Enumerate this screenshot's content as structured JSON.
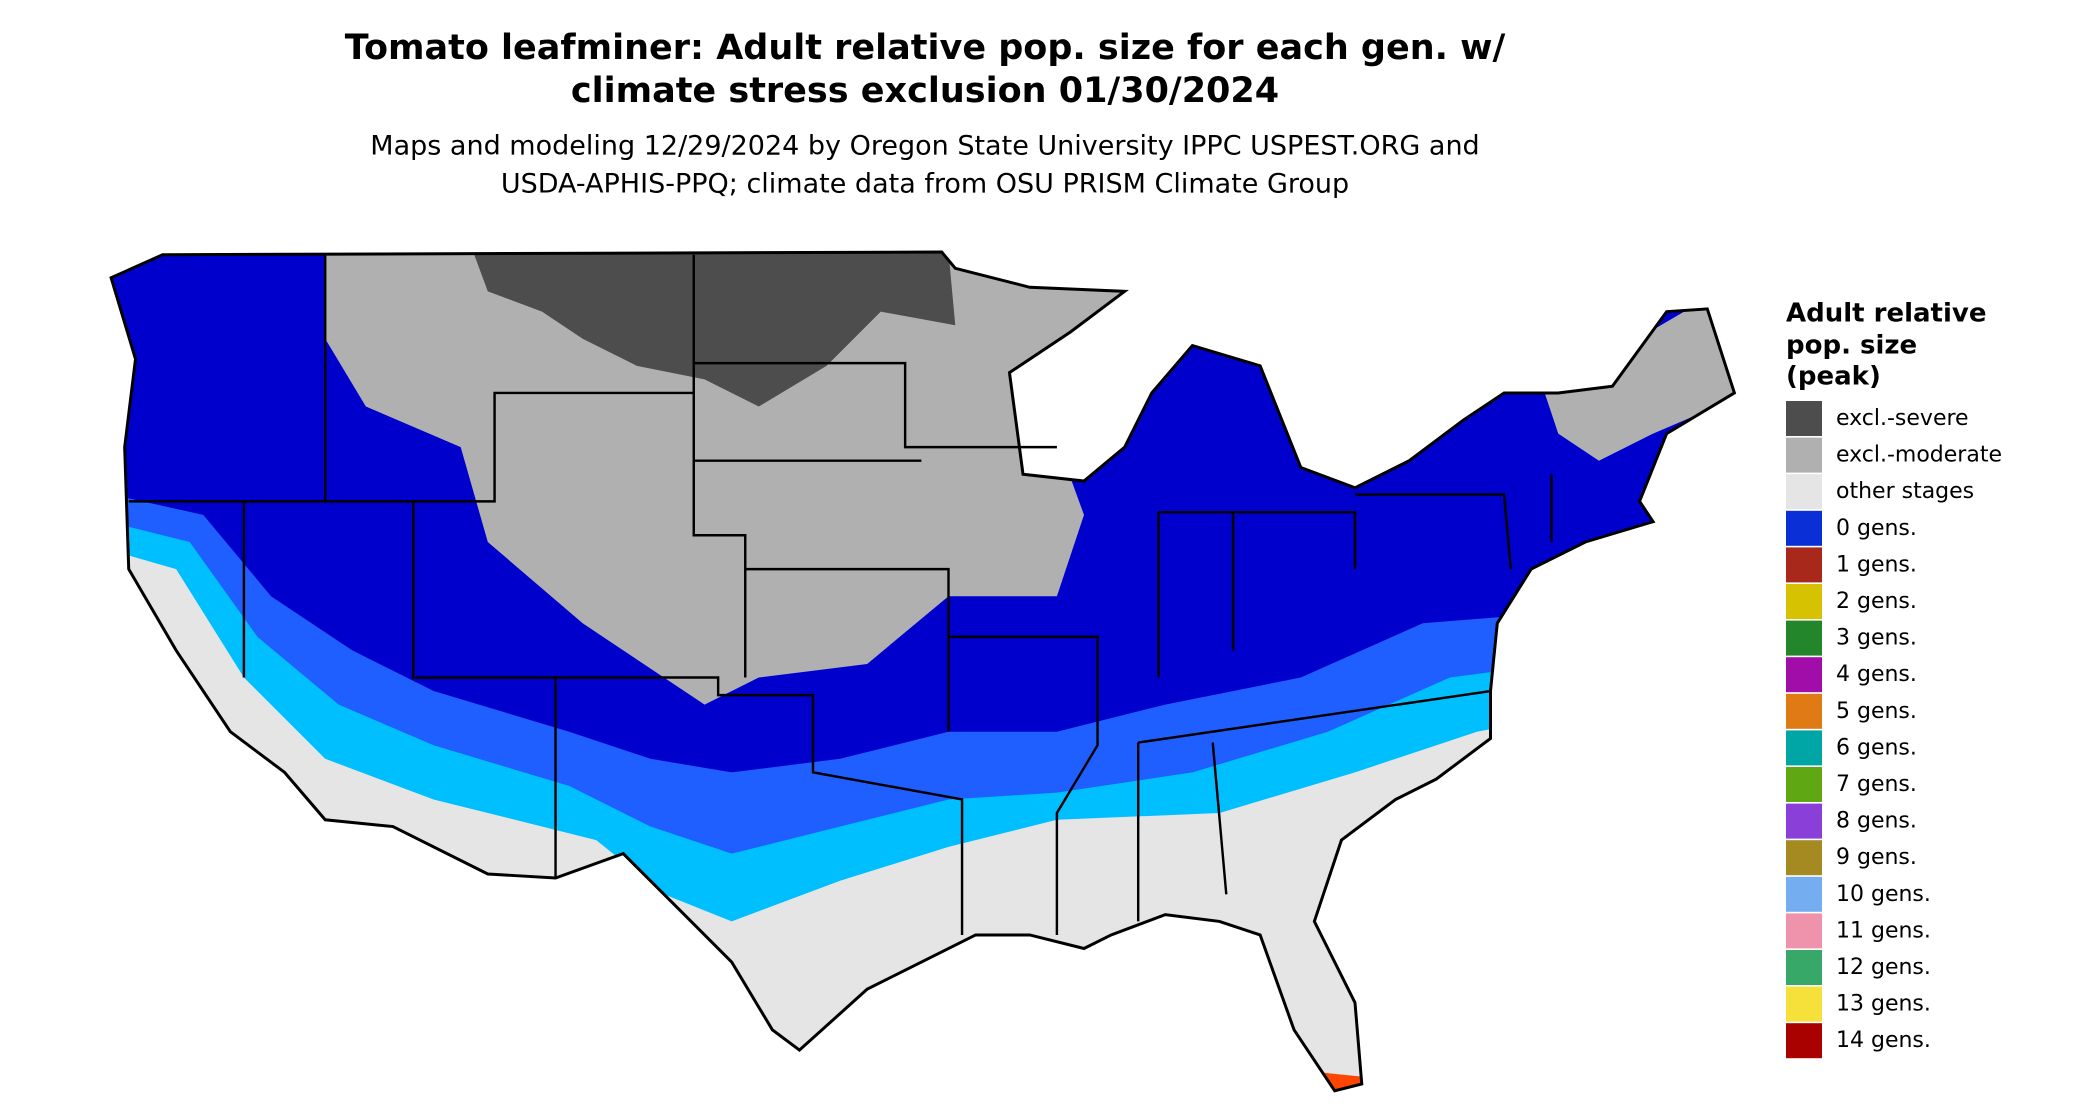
{
  "header": {
    "title": [
      "Tomato leafminer: Adult relative pop. size for each gen. w/",
      "climate stress exclusion 01/30/2024"
    ],
    "subtitle": [
      "Maps and modeling 12/29/2024 by Oregon State University IPPC USPEST.ORG and",
      "USDA-APHIS-PPQ; climate data from OSU PRISM Climate Group"
    ]
  },
  "legend": {
    "title": [
      "Adult relative",
      "pop. size",
      "(peak)"
    ],
    "items": [
      {
        "label": "excl.-severe",
        "color": "#4d4d4d"
      },
      {
        "label": "excl.-moderate",
        "color": "#b0b0b0"
      },
      {
        "label": "other stages",
        "color": "#e5e5e5"
      },
      {
        "label": "0 gens.",
        "color": "#0a2fd6"
      },
      {
        "label": "1 gens.",
        "color": "#a8281b"
      },
      {
        "label": "2 gens.",
        "color": "#d6c200"
      },
      {
        "label": "3 gens.",
        "color": "#24862a"
      },
      {
        "label": "4 gens.",
        "color": "#a10da8"
      },
      {
        "label": "5 gens.",
        "color": "#e07a15"
      },
      {
        "label": "6 gens.",
        "color": "#00a6a6"
      },
      {
        "label": "7 gens.",
        "color": "#5fa814"
      },
      {
        "label": "8 gens.",
        "color": "#8a3fd9"
      },
      {
        "label": "9 gens.",
        "color": "#a58a22"
      },
      {
        "label": "10 gens.",
        "color": "#74aef0"
      },
      {
        "label": "11 gens.",
        "color": "#ef93ad"
      },
      {
        "label": "12 gens.",
        "color": "#38a868"
      },
      {
        "label": "13 gens.",
        "color": "#f6e03a"
      },
      {
        "label": "14 gens.",
        "color": "#a90000"
      }
    ]
  }
}
